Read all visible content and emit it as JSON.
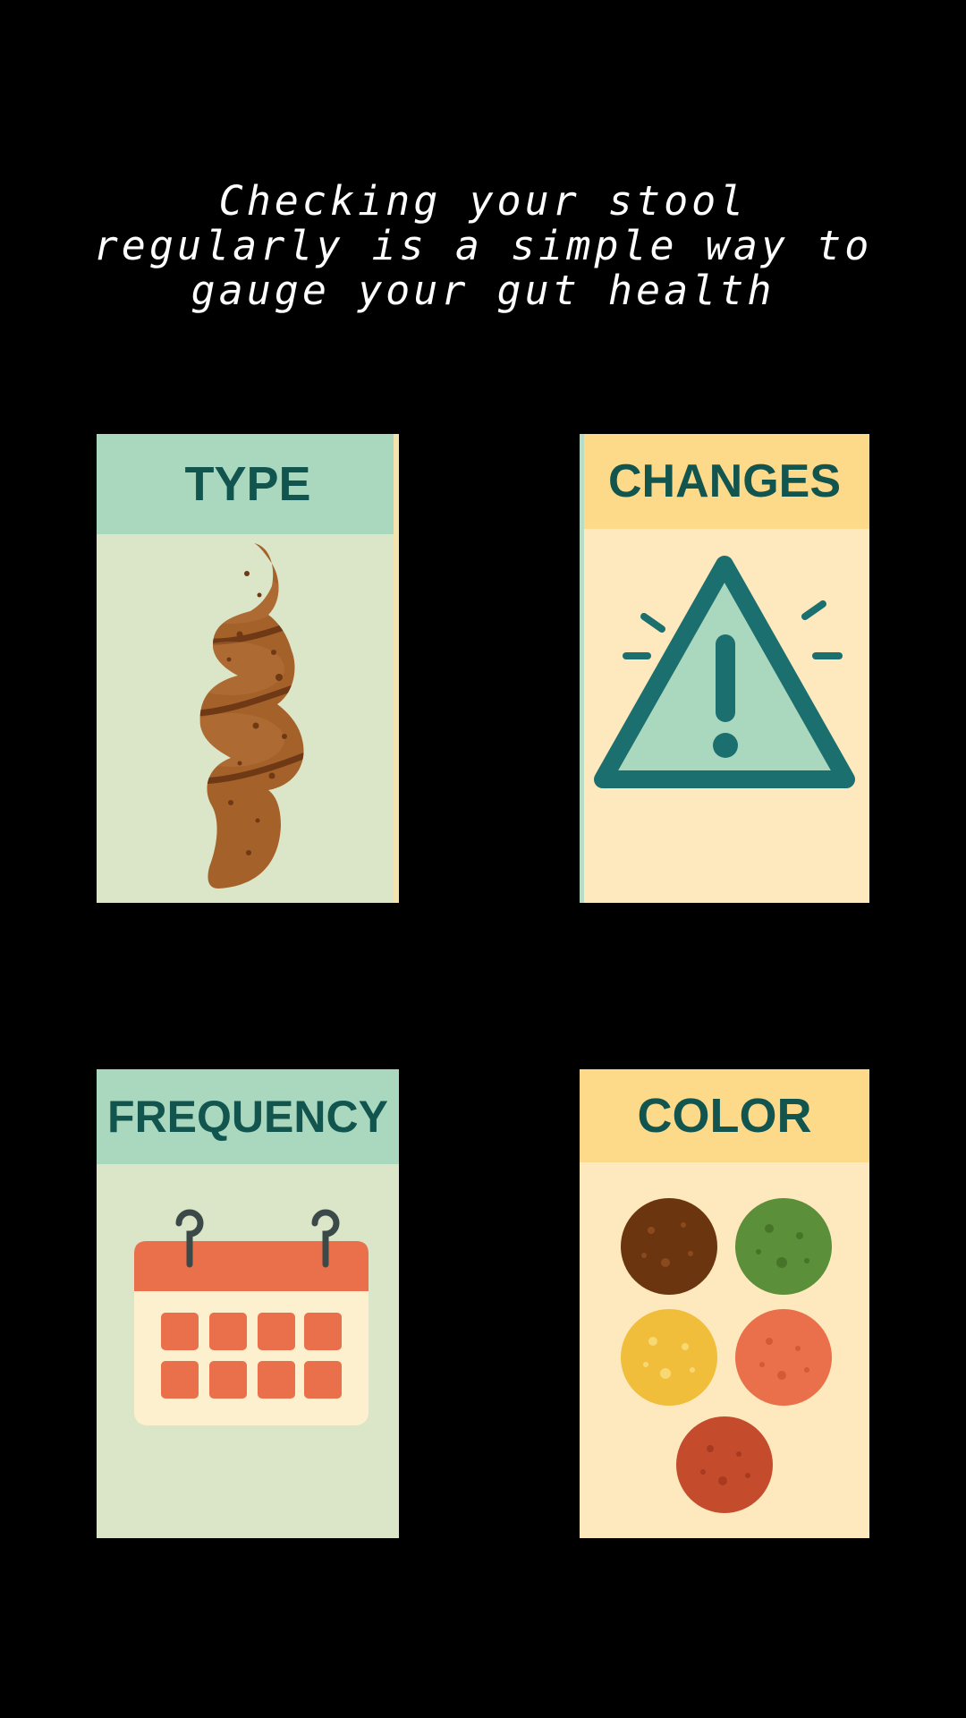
{
  "headline": "Checking your stool regularly is a simple way to gauge your gut health",
  "cards": {
    "type": {
      "title": "TYPE"
    },
    "changes": {
      "title": "CHANGES"
    },
    "frequency": {
      "title": "FREQUENCY"
    },
    "color": {
      "title": "COLOR"
    }
  },
  "icons": {
    "type": "stool-swirl-icon",
    "changes": "warning-triangle-icon",
    "frequency": "calendar-icon",
    "color": "color-swatches-icon"
  },
  "colors": {
    "background": "#000000",
    "headline_text": "#ffffff",
    "card_green": "#dbe6c9",
    "card_green_header": "#a9d8bf",
    "card_yellow": "#fde9bd",
    "card_yellow_header": "#fdd98a",
    "title_text": "#12554f",
    "stool_brown": "#a4612a",
    "warning_teal": "#1c6f6f",
    "calendar_orange": "#e9704a",
    "swatch_brown": "#6b3510",
    "swatch_green": "#5b8f3a",
    "swatch_yellow": "#f0be3a",
    "swatch_orange": "#e9704a",
    "swatch_red": "#c44b2c"
  }
}
